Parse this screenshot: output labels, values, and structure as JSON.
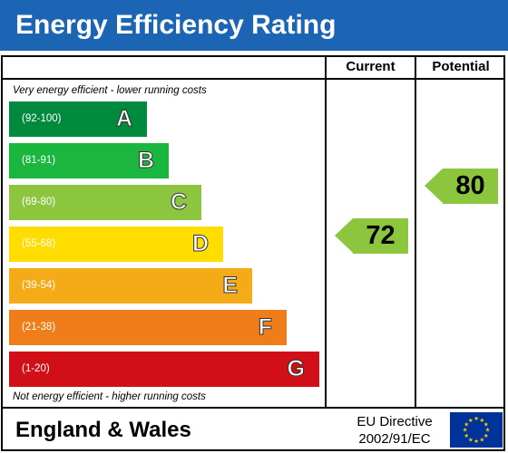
{
  "header": {
    "title": "Energy Efficiency Rating"
  },
  "columns": {
    "current": "Current",
    "potential": "Potential"
  },
  "notes": {
    "top": "Very energy efficient - lower running costs",
    "bottom": "Not energy efficient - higher running costs"
  },
  "chart_data": {
    "type": "bar",
    "title": "Energy Efficiency Rating",
    "categories": [
      "A",
      "B",
      "C",
      "D",
      "E",
      "F",
      "G"
    ],
    "ranges": [
      "(92-100)",
      "(81-91)",
      "(69-80)",
      "(55-68)",
      "(39-54)",
      "(21-38)",
      "(1-20)"
    ],
    "colors": [
      "#008a3e",
      "#1bb63d",
      "#8cc63f",
      "#ffdd00",
      "#f5ab18",
      "#ef7d1a",
      "#d10f18"
    ],
    "current": {
      "value": 72,
      "band": "C",
      "color": "#8cc63f"
    },
    "potential": {
      "value": 80,
      "band": "C",
      "color": "#8cc63f"
    }
  },
  "footer": {
    "region": "England & Wales",
    "directive_line1": "EU Directive",
    "directive_line2": "2002/91/EC",
    "flag_color": "#003399",
    "star_color": "#ffcc00"
  }
}
